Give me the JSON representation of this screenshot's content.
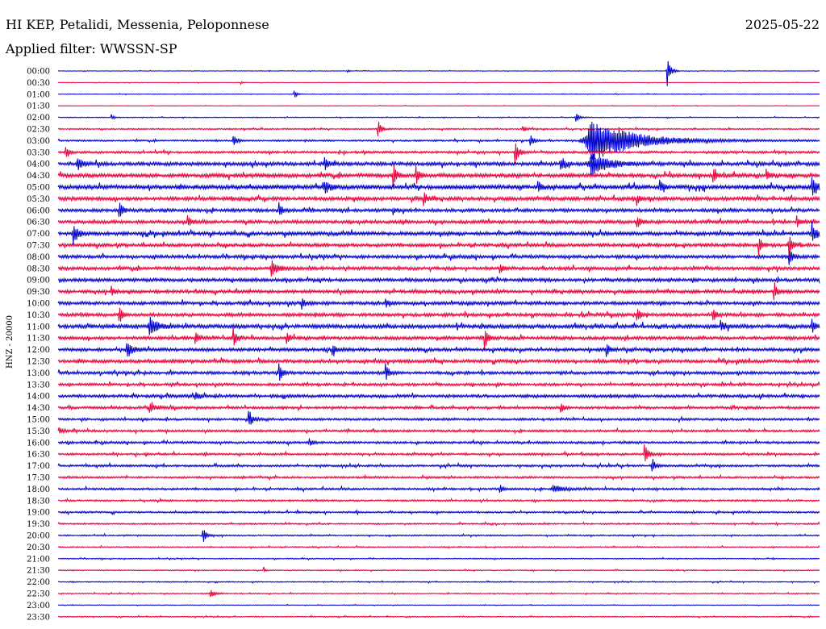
{
  "header": {
    "station": "HI KEP, Petalidi, Messenia, Peloponnese",
    "date": "2025-05-22",
    "filter": "Applied filter: WWSSN-SP"
  },
  "colors": {
    "blue": "#0000cc",
    "red": "#e8003a"
  },
  "chart_data": {
    "type": "line",
    "title": "HI KEP, Petalidi, Messenia, Peloponnese",
    "ylabel": "HNZ - 20000",
    "xlabel": "",
    "grid": false,
    "legend": "none",
    "categories": [
      "00:00",
      "00:30",
      "01:00",
      "01:30",
      "02:00",
      "02:30",
      "03:00",
      "03:30",
      "04:00",
      "04:30",
      "05:00",
      "05:30",
      "06:00",
      "06:30",
      "07:00",
      "07:30",
      "08:00",
      "08:30",
      "09:00",
      "09:30",
      "10:00",
      "10:30",
      "11:00",
      "11:30",
      "12:00",
      "12:30",
      "13:00",
      "13:30",
      "14:00",
      "14:30",
      "15:00",
      "15:30",
      "16:00",
      "16:30",
      "17:00",
      "17:30",
      "18:00",
      "18:30",
      "19:00",
      "19:30",
      "20:00",
      "20:30",
      "21:00",
      "21:30",
      "22:00",
      "22:30",
      "23:00",
      "23:30"
    ],
    "trace_colors": [
      "blue",
      "red"
    ],
    "noise_level": [
      0.3,
      0.3,
      0.4,
      0.3,
      0.5,
      0.8,
      1.0,
      1.4,
      2.2,
      2.4,
      2.6,
      2.2,
      2.0,
      2.0,
      2.2,
      2.0,
      2.0,
      2.0,
      2.0,
      2.0,
      2.0,
      2.0,
      2.4,
      2.0,
      2.0,
      2.0,
      1.8,
      1.6,
      1.8,
      1.6,
      1.4,
      1.4,
      1.4,
      1.3,
      1.3,
      1.2,
      1.3,
      1.1,
      1.1,
      0.9,
      0.8,
      0.7,
      0.6,
      0.6,
      0.6,
      0.6,
      0.4,
      0.6
    ],
    "events": [
      {
        "row": 0,
        "x": 0.8,
        "amp": 20,
        "w": 0.004
      },
      {
        "row": 0,
        "x": 0.38,
        "amp": 2,
        "w": 0.002
      },
      {
        "row": 1,
        "x": 0.24,
        "amp": 2,
        "w": 0.002
      },
      {
        "row": 2,
        "x": 0.31,
        "amp": 6,
        "w": 0.003
      },
      {
        "row": 4,
        "x": 0.07,
        "amp": 4,
        "w": 0.003
      },
      {
        "row": 4,
        "x": 0.68,
        "amp": 8,
        "w": 0.004
      },
      {
        "row": 5,
        "x": 0.42,
        "amp": 12,
        "w": 0.004
      },
      {
        "row": 5,
        "x": 0.61,
        "amp": 5,
        "w": 0.004
      },
      {
        "row": 6,
        "x": 0.23,
        "amp": 9,
        "w": 0.004
      },
      {
        "row": 6,
        "x": 0.7,
        "amp": 26,
        "w": 0.055
      },
      {
        "row": 6,
        "x": 0.62,
        "amp": 10,
        "w": 0.004
      },
      {
        "row": 7,
        "x": 0.01,
        "amp": 8,
        "w": 0.004
      },
      {
        "row": 7,
        "x": 0.6,
        "amp": 14,
        "w": 0.005
      },
      {
        "row": 8,
        "x": 0.025,
        "amp": 10,
        "w": 0.006
      },
      {
        "row": 8,
        "x": 0.35,
        "amp": 10,
        "w": 0.004
      },
      {
        "row": 8,
        "x": 0.66,
        "amp": 9,
        "w": 0.004
      },
      {
        "row": 8,
        "x": 0.7,
        "amp": 14,
        "w": 0.02
      },
      {
        "row": 9,
        "x": 0.44,
        "amp": 16,
        "w": 0.004
      },
      {
        "row": 9,
        "x": 0.47,
        "amp": 12,
        "w": 0.004
      },
      {
        "row": 9,
        "x": 0.86,
        "amp": 10,
        "w": 0.004
      },
      {
        "row": 9,
        "x": 0.93,
        "amp": 9,
        "w": 0.004
      },
      {
        "row": 10,
        "x": 0.35,
        "amp": 10,
        "w": 0.006
      },
      {
        "row": 10,
        "x": 0.63,
        "amp": 10,
        "w": 0.004
      },
      {
        "row": 10,
        "x": 0.79,
        "amp": 9,
        "w": 0.004
      },
      {
        "row": 10,
        "x": 0.99,
        "amp": 14,
        "w": 0.006
      },
      {
        "row": 11,
        "x": 0.48,
        "amp": 9,
        "w": 0.004
      },
      {
        "row": 11,
        "x": 0.76,
        "amp": 7,
        "w": 0.004
      },
      {
        "row": 12,
        "x": 0.08,
        "amp": 12,
        "w": 0.004
      },
      {
        "row": 12,
        "x": 0.29,
        "amp": 9,
        "w": 0.004
      },
      {
        "row": 12,
        "x": 0.44,
        "amp": 5,
        "w": 0.004
      },
      {
        "row": 13,
        "x": 0.17,
        "amp": 8,
        "w": 0.004
      },
      {
        "row": 13,
        "x": 0.76,
        "amp": 10,
        "w": 0.004
      },
      {
        "row": 13,
        "x": 0.97,
        "amp": 8,
        "w": 0.004
      },
      {
        "row": 14,
        "x": 0.02,
        "amp": 14,
        "w": 0.006
      },
      {
        "row": 14,
        "x": 0.99,
        "amp": 14,
        "w": 0.006
      },
      {
        "row": 15,
        "x": 0.92,
        "amp": 12,
        "w": 0.004
      },
      {
        "row": 15,
        "x": 0.96,
        "amp": 14,
        "w": 0.004
      },
      {
        "row": 16,
        "x": 0.96,
        "amp": 12,
        "w": 0.004
      },
      {
        "row": 17,
        "x": 0.28,
        "amp": 10,
        "w": 0.008
      },
      {
        "row": 17,
        "x": 0.58,
        "amp": 6,
        "w": 0.004
      },
      {
        "row": 19,
        "x": 0.94,
        "amp": 10,
        "w": 0.004
      },
      {
        "row": 19,
        "x": 0.07,
        "amp": 6,
        "w": 0.004
      },
      {
        "row": 20,
        "x": 0.32,
        "amp": 7,
        "w": 0.004
      },
      {
        "row": 20,
        "x": 0.43,
        "amp": 7,
        "w": 0.004
      },
      {
        "row": 21,
        "x": 0.08,
        "amp": 12,
        "w": 0.004
      },
      {
        "row": 21,
        "x": 0.76,
        "amp": 10,
        "w": 0.004
      },
      {
        "row": 21,
        "x": 0.86,
        "amp": 10,
        "w": 0.004
      },
      {
        "row": 22,
        "x": 0.12,
        "amp": 14,
        "w": 0.008
      },
      {
        "row": 22,
        "x": 0.87,
        "amp": 8,
        "w": 0.004
      },
      {
        "row": 22,
        "x": 0.99,
        "amp": 9,
        "w": 0.004
      },
      {
        "row": 23,
        "x": 0.18,
        "amp": 8,
        "w": 0.004
      },
      {
        "row": 23,
        "x": 0.23,
        "amp": 12,
        "w": 0.004
      },
      {
        "row": 23,
        "x": 0.3,
        "amp": 9,
        "w": 0.004
      },
      {
        "row": 23,
        "x": 0.56,
        "amp": 14,
        "w": 0.004
      },
      {
        "row": 24,
        "x": 0.09,
        "amp": 12,
        "w": 0.006
      },
      {
        "row": 24,
        "x": 0.36,
        "amp": 8,
        "w": 0.004
      },
      {
        "row": 24,
        "x": 0.72,
        "amp": 10,
        "w": 0.004
      },
      {
        "row": 26,
        "x": 0.29,
        "amp": 12,
        "w": 0.004
      },
      {
        "row": 26,
        "x": 0.43,
        "amp": 12,
        "w": 0.004
      },
      {
        "row": 28,
        "x": 0.18,
        "amp": 5,
        "w": 0.006
      },
      {
        "row": 29,
        "x": 0.12,
        "amp": 5,
        "w": 0.008
      },
      {
        "row": 29,
        "x": 0.66,
        "amp": 6,
        "w": 0.004
      },
      {
        "row": 30,
        "x": 0.25,
        "amp": 10,
        "w": 0.006
      },
      {
        "row": 31,
        "x": 0.0,
        "amp": 7,
        "w": 0.004
      },
      {
        "row": 32,
        "x": 0.33,
        "amp": 5,
        "w": 0.004
      },
      {
        "row": 33,
        "x": 0.77,
        "amp": 12,
        "w": 0.005
      },
      {
        "row": 34,
        "x": 0.78,
        "amp": 8,
        "w": 0.004
      },
      {
        "row": 36,
        "x": 0.58,
        "amp": 6,
        "w": 0.004
      },
      {
        "row": 36,
        "x": 0.65,
        "amp": 5,
        "w": 0.012
      },
      {
        "row": 40,
        "x": 0.19,
        "amp": 10,
        "w": 0.004
      },
      {
        "row": 43,
        "x": 0.27,
        "amp": 4,
        "w": 0.002
      },
      {
        "row": 45,
        "x": 0.2,
        "amp": 5,
        "w": 0.006
      }
    ]
  }
}
